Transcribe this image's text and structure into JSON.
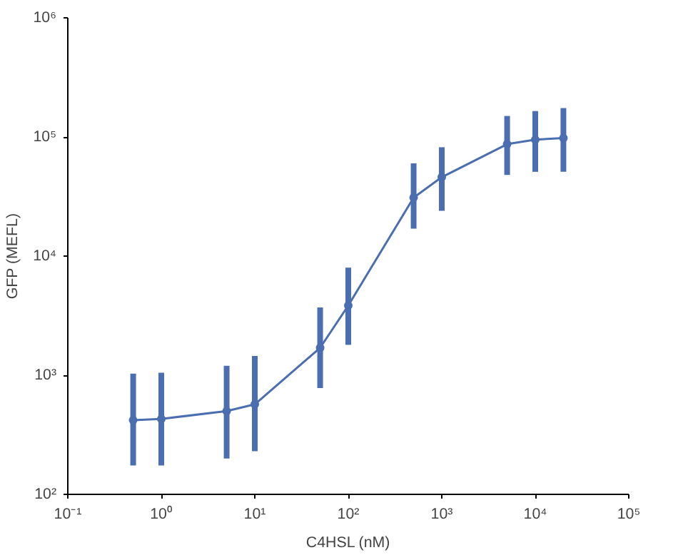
{
  "chart_data": {
    "type": "line",
    "xlabel": "C4HSL (nM)",
    "ylabel": "GFP (MEFL)",
    "log": "xy",
    "grid": false,
    "marker": "circle",
    "line_style": "solid",
    "x": [
      0.5,
      1,
      5,
      10,
      50,
      100,
      500,
      1000,
      5000,
      10000,
      20000
    ],
    "series": [
      {
        "color": "#4a6eb0",
        "values": [
          420,
          430,
          500,
          570,
          1700,
          3850,
          31000,
          46000,
          87000,
          95000,
          98000
        ],
        "errors": [
          [
            175,
            1030
          ],
          [
            175,
            1050
          ],
          [
            200,
            1200
          ],
          [
            230,
            1450
          ],
          [
            780,
            3700
          ],
          [
            1800,
            8000
          ],
          [
            17000,
            60000
          ],
          [
            24000,
            82000
          ],
          [
            48000,
            150000
          ],
          [
            51000,
            165000
          ],
          [
            51000,
            175000
          ]
        ]
      }
    ],
    "xlim": [
      0.1,
      100000
    ],
    "ylim": [
      100,
      1000000
    ],
    "xticks": [
      {
        "value": 0.1,
        "label": "10⁻¹"
      },
      {
        "value": 1,
        "label": "10⁰"
      },
      {
        "value": 10,
        "label": "10¹"
      },
      {
        "value": 100,
        "label": "10²"
      },
      {
        "value": 1000,
        "label": "10³"
      },
      {
        "value": 10000,
        "label": "10⁴"
      },
      {
        "value": 100000,
        "label": "10⁵"
      }
    ],
    "yticks": [
      {
        "value": 100,
        "label": "10²"
      },
      {
        "value": 1000,
        "label": "10³"
      },
      {
        "value": 10000,
        "label": "10⁴"
      },
      {
        "value": 100000,
        "label": "10⁵"
      },
      {
        "value": 1000000,
        "label": "10⁶"
      }
    ]
  }
}
